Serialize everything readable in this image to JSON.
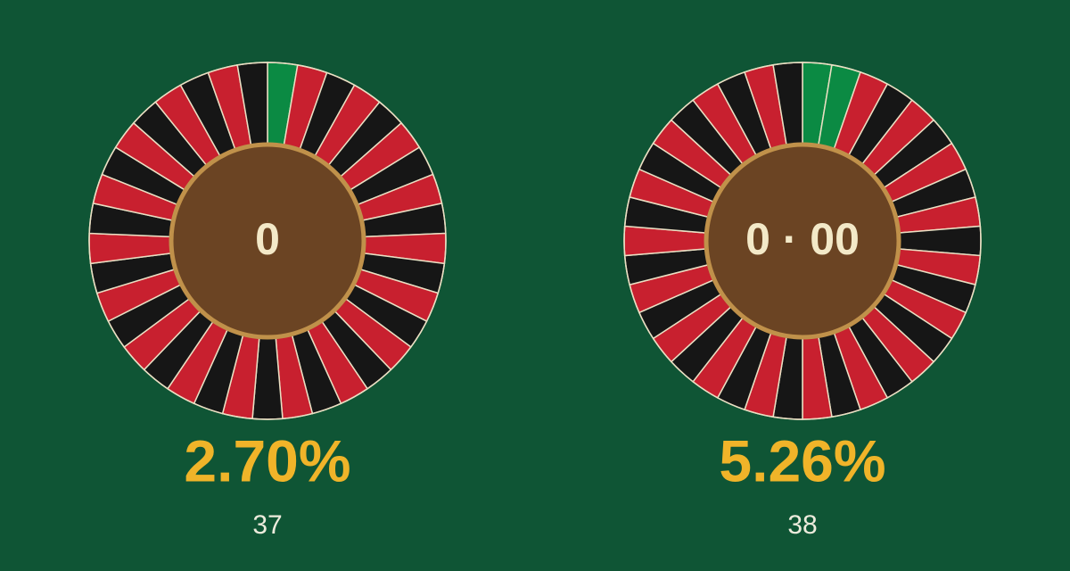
{
  "wheels": [
    {
      "center": "0",
      "edge": {
        "value": 2.7,
        "label": "2.70%"
      },
      "pockets": 37
    },
    {
      "center": "0 · 00",
      "edge": {
        "value": 5.26,
        "label": "5.26%"
      },
      "pockets": 38
    }
  ]
}
